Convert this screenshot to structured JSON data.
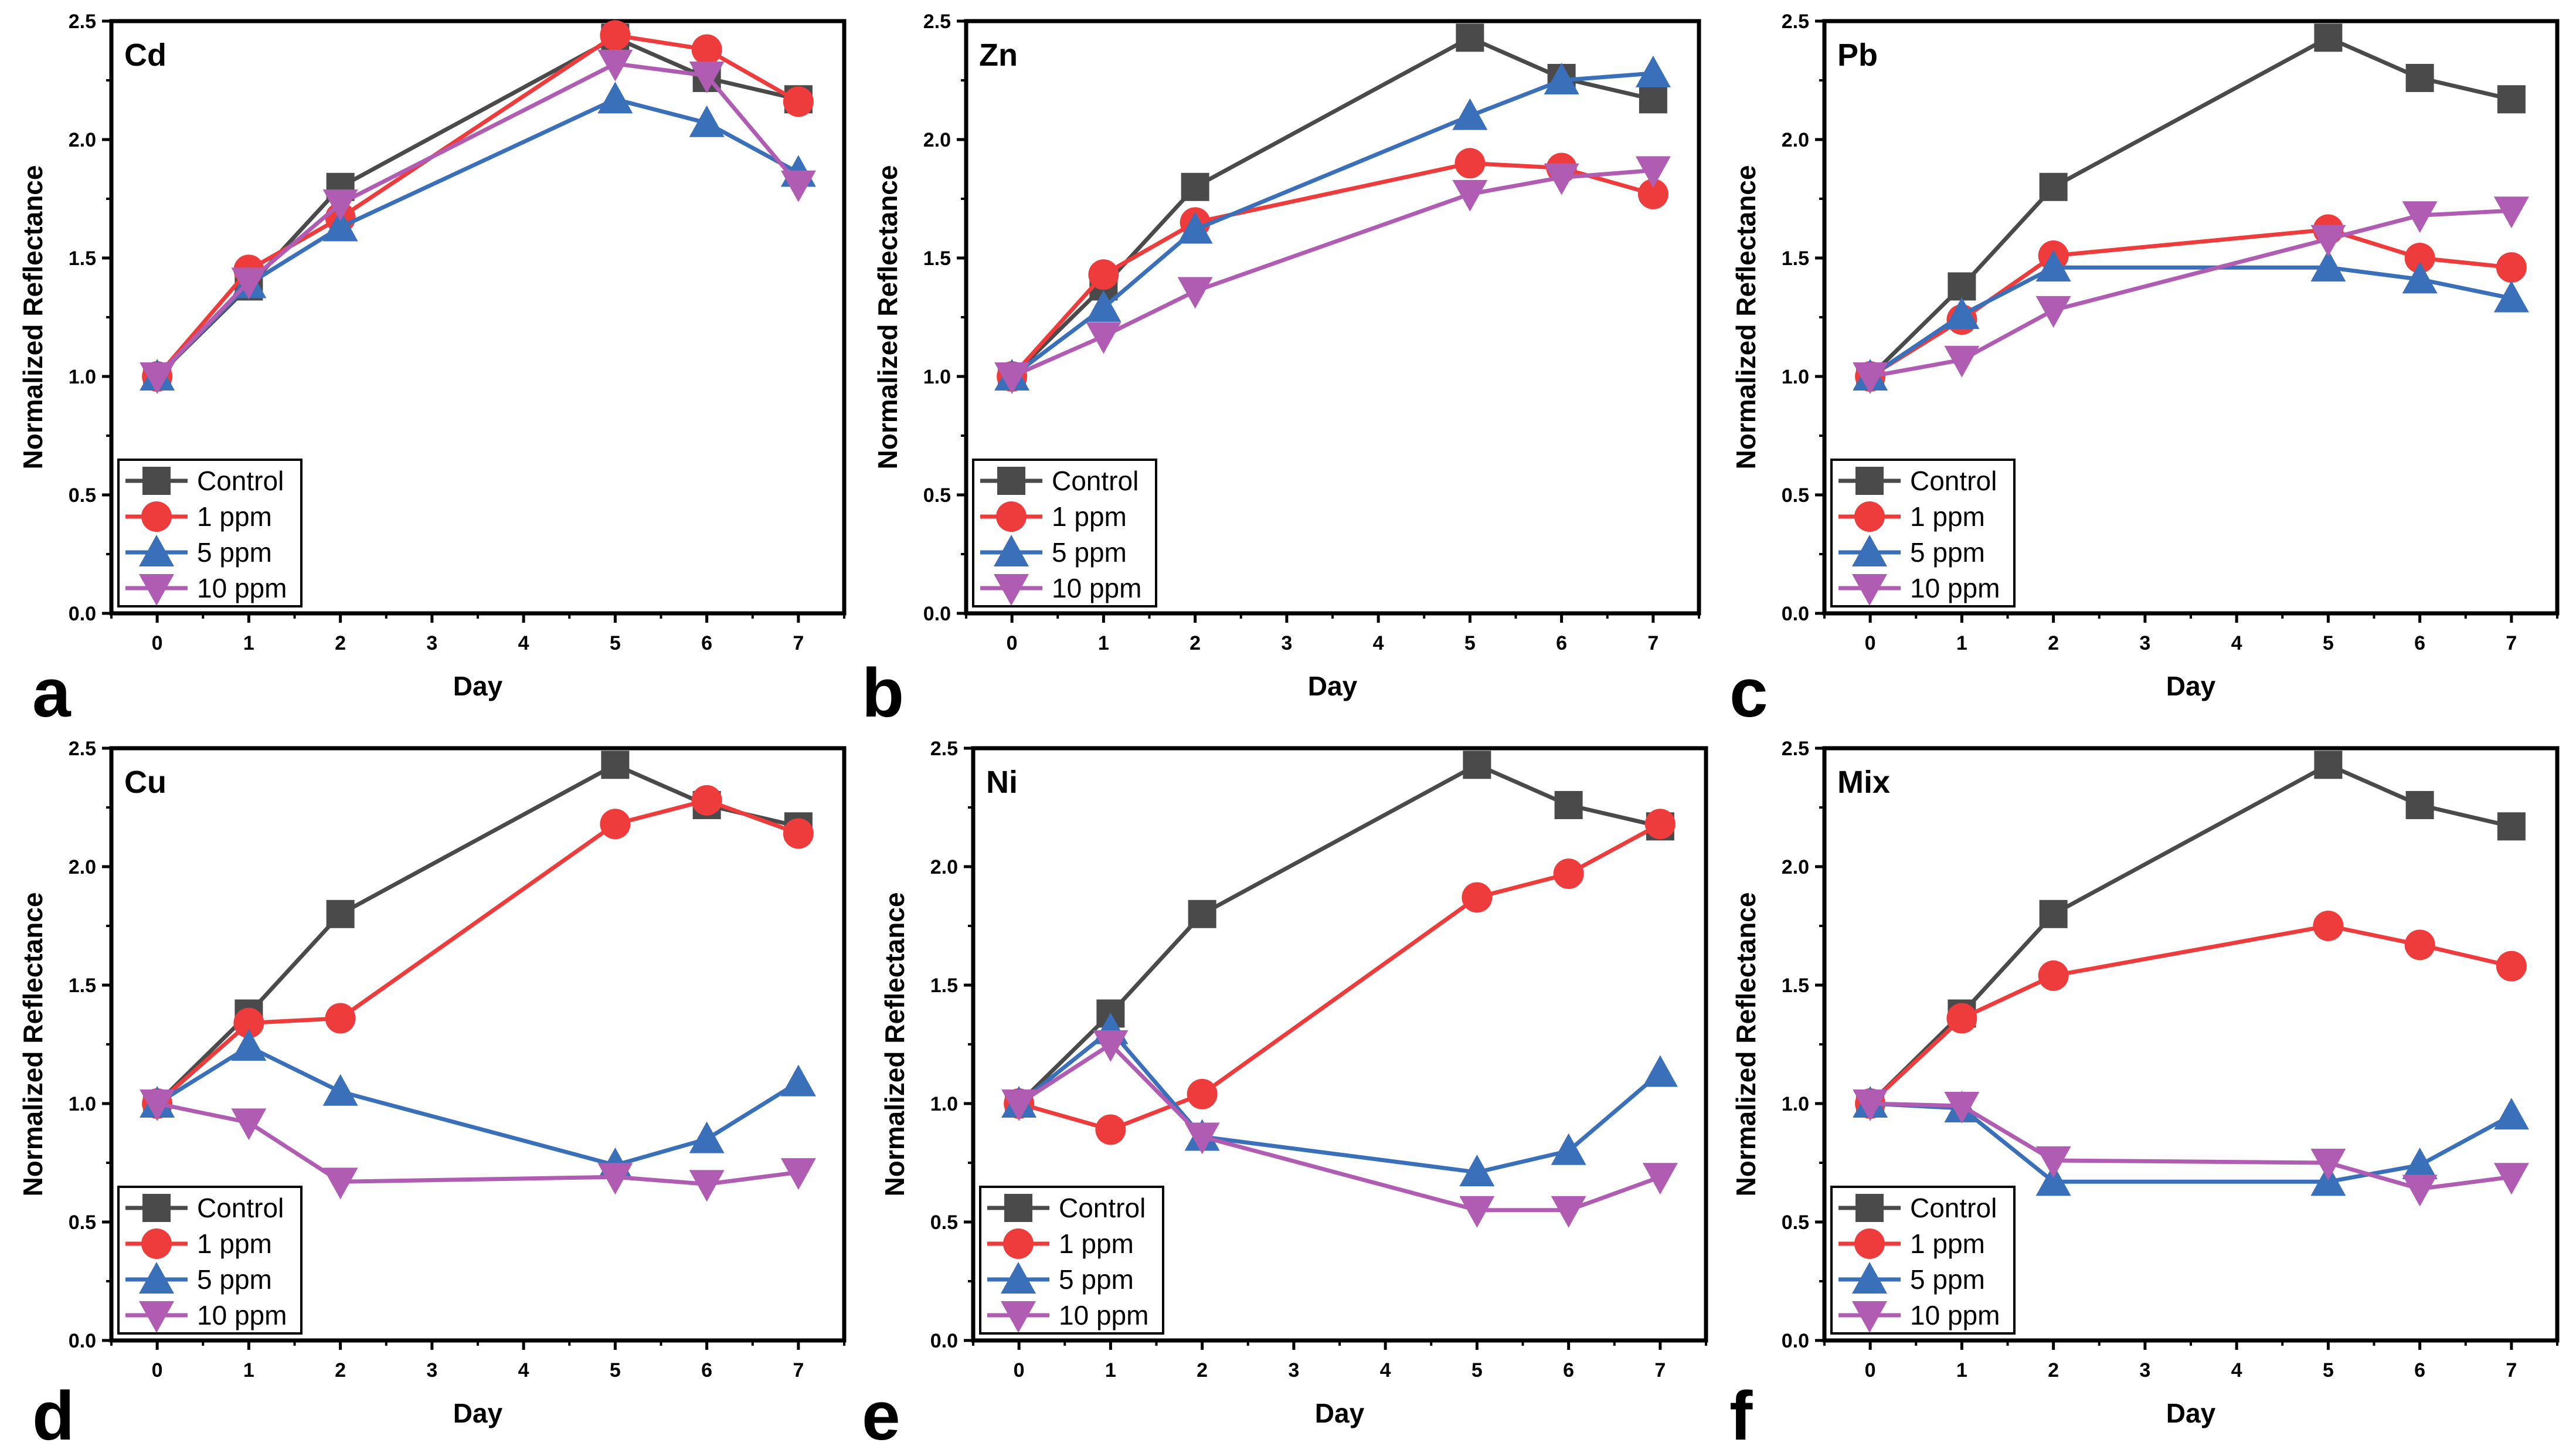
{
  "series_styles": [
    {
      "key": "control",
      "legend": "Control",
      "color": "#4a4a4a",
      "marker": "square"
    },
    {
      "key": "p1",
      "legend": "1 ppm",
      "color": "#ee3c3c",
      "marker": "circle"
    },
    {
      "key": "p5",
      "legend": "5 ppm",
      "color": "#3a6fba",
      "marker": "triangle-up"
    },
    {
      "key": "p10",
      "legend": "10 ppm",
      "color": "#b05cb3",
      "marker": "triangle-down"
    }
  ],
  "chart_data": [
    {
      "type": "line",
      "panel_letter": "a",
      "title": "Cd",
      "xlabel": "Day",
      "ylabel": "Normalized Reflectance",
      "xlim": [
        -0.5,
        7.5
      ],
      "ylim": [
        0,
        2.5
      ],
      "xticks": [
        "0",
        "1",
        "2",
        "3",
        "4",
        "5",
        "6",
        "7"
      ],
      "yticks": [
        "0.0",
        "0.5",
        "1.0",
        "1.5",
        "2.0",
        "2.5"
      ],
      "x": [
        0,
        1,
        2,
        5,
        6,
        7
      ],
      "legend_position": "bottom-left",
      "series": [
        {
          "name": "Control",
          "values": [
            1.0,
            1.38,
            1.8,
            2.43,
            2.26,
            2.17
          ]
        },
        {
          "name": "1 ppm",
          "values": [
            1.0,
            1.45,
            1.67,
            2.44,
            2.38,
            2.16
          ]
        },
        {
          "name": "5 ppm",
          "values": [
            1.0,
            1.39,
            1.63,
            2.17,
            2.07,
            1.86
          ]
        },
        {
          "name": "10 ppm",
          "values": [
            1.0,
            1.4,
            1.73,
            2.32,
            2.27,
            1.81
          ]
        }
      ]
    },
    {
      "type": "line",
      "panel_letter": "b",
      "title": "Zn",
      "xlabel": "Day",
      "ylabel": "Normalized Reflectance",
      "xlim": [
        -0.5,
        7.5
      ],
      "ylim": [
        0,
        2.5
      ],
      "xticks": [
        "0",
        "1",
        "2",
        "3",
        "4",
        "5",
        "6",
        "7"
      ],
      "yticks": [
        "0.0",
        "0.5",
        "1.0",
        "1.5",
        "2.0",
        "2.5"
      ],
      "x": [
        0,
        1,
        2,
        5,
        6,
        7
      ],
      "legend_position": "bottom-left",
      "series": [
        {
          "name": "Control",
          "values": [
            1.0,
            1.38,
            1.8,
            2.43,
            2.26,
            2.17
          ]
        },
        {
          "name": "1 ppm",
          "values": [
            1.0,
            1.43,
            1.65,
            1.9,
            1.88,
            1.77
          ]
        },
        {
          "name": "5 ppm",
          "values": [
            1.0,
            1.29,
            1.62,
            2.1,
            2.25,
            2.28
          ]
        },
        {
          "name": "10 ppm",
          "values": [
            1.0,
            1.17,
            1.36,
            1.77,
            1.84,
            1.87
          ]
        }
      ]
    },
    {
      "type": "line",
      "panel_letter": "c",
      "title": "Pb",
      "xlabel": "Day",
      "ylabel": "Normalized Reflectance",
      "xlim": [
        -0.5,
        7.5
      ],
      "ylim": [
        0,
        2.5
      ],
      "xticks": [
        "0",
        "1",
        "2",
        "3",
        "4",
        "5",
        "6",
        "7"
      ],
      "yticks": [
        "0.0",
        "0.5",
        "1.0",
        "1.5",
        "2.0",
        "2.5"
      ],
      "x": [
        0,
        1,
        2,
        5,
        6,
        7
      ],
      "legend_position": "bottom-left",
      "series": [
        {
          "name": "Control",
          "values": [
            1.0,
            1.38,
            1.8,
            2.43,
            2.26,
            2.17
          ]
        },
        {
          "name": "1 ppm",
          "values": [
            1.0,
            1.24,
            1.51,
            1.62,
            1.5,
            1.46
          ]
        },
        {
          "name": "5 ppm",
          "values": [
            1.0,
            1.26,
            1.46,
            1.46,
            1.41,
            1.33
          ]
        },
        {
          "name": "10 ppm",
          "values": [
            1.0,
            1.07,
            1.28,
            1.58,
            1.68,
            1.7
          ]
        }
      ]
    },
    {
      "type": "line",
      "panel_letter": "d",
      "title": "Cu",
      "xlabel": "Day",
      "ylabel": "Normalized Reflectance",
      "xlim": [
        -0.5,
        7.5
      ],
      "ylim": [
        0,
        2.5
      ],
      "xticks": [
        "0",
        "1",
        "2",
        "3",
        "4",
        "5",
        "6",
        "7"
      ],
      "yticks": [
        "0.0",
        "0.5",
        "1.0",
        "1.5",
        "2.0",
        "2.5"
      ],
      "x": [
        0,
        1,
        2,
        5,
        6,
        7
      ],
      "legend_position": "bottom-left",
      "series": [
        {
          "name": "Control",
          "values": [
            1.0,
            1.38,
            1.8,
            2.43,
            2.26,
            2.17
          ]
        },
        {
          "name": "1 ppm",
          "values": [
            1.0,
            1.34,
            1.36,
            2.18,
            2.28,
            2.14
          ]
        },
        {
          "name": "5 ppm",
          "values": [
            1.0,
            1.24,
            1.05,
            0.74,
            0.85,
            1.09
          ]
        },
        {
          "name": "10 ppm",
          "values": [
            1.0,
            0.92,
            0.67,
            0.69,
            0.66,
            0.71
          ]
        }
      ]
    },
    {
      "type": "line",
      "panel_letter": "e",
      "title": "Ni",
      "xlabel": "Day",
      "ylabel": "Normalized Reflectance",
      "xlim": [
        -0.5,
        7.5
      ],
      "ylim": [
        0,
        2.5
      ],
      "xticks": [
        "0",
        "1",
        "2",
        "3",
        "4",
        "5",
        "6",
        "7"
      ],
      "yticks": [
        "0.0",
        "0.5",
        "1.0",
        "1.5",
        "2.0",
        "2.5"
      ],
      "x": [
        0,
        1,
        2,
        5,
        6,
        7
      ],
      "legend_position": "bottom-left",
      "series": [
        {
          "name": "Control",
          "values": [
            1.0,
            1.38,
            1.8,
            2.43,
            2.26,
            2.17
          ]
        },
        {
          "name": "1 ppm",
          "values": [
            1.0,
            0.89,
            1.04,
            1.87,
            1.97,
            2.18
          ]
        },
        {
          "name": "5 ppm",
          "values": [
            1.0,
            1.31,
            0.86,
            0.71,
            0.8,
            1.13
          ]
        },
        {
          "name": "10 ppm",
          "values": [
            1.0,
            1.25,
            0.86,
            0.55,
            0.55,
            0.69
          ]
        }
      ]
    },
    {
      "type": "line",
      "panel_letter": "f",
      "title": "Mix",
      "xlabel": "Day",
      "ylabel": "Normalized Reflectance",
      "xlim": [
        -0.5,
        7.5
      ],
      "ylim": [
        0,
        2.5
      ],
      "xticks": [
        "0",
        "1",
        "2",
        "3",
        "4",
        "5",
        "6",
        "7"
      ],
      "yticks": [
        "0.0",
        "0.5",
        "1.0",
        "1.5",
        "2.0",
        "2.5"
      ],
      "x": [
        0,
        1,
        2,
        5,
        6,
        7
      ],
      "legend_position": "bottom-left",
      "series": [
        {
          "name": "Control",
          "values": [
            1.0,
            1.38,
            1.8,
            2.43,
            2.26,
            2.17
          ]
        },
        {
          "name": "1 ppm",
          "values": [
            1.0,
            1.36,
            1.54,
            1.75,
            1.67,
            1.58
          ]
        },
        {
          "name": "5 ppm",
          "values": [
            1.0,
            0.98,
            0.67,
            0.67,
            0.74,
            0.95
          ]
        },
        {
          "name": "10 ppm",
          "values": [
            1.0,
            0.99,
            0.76,
            0.75,
            0.64,
            0.69
          ]
        }
      ]
    }
  ]
}
